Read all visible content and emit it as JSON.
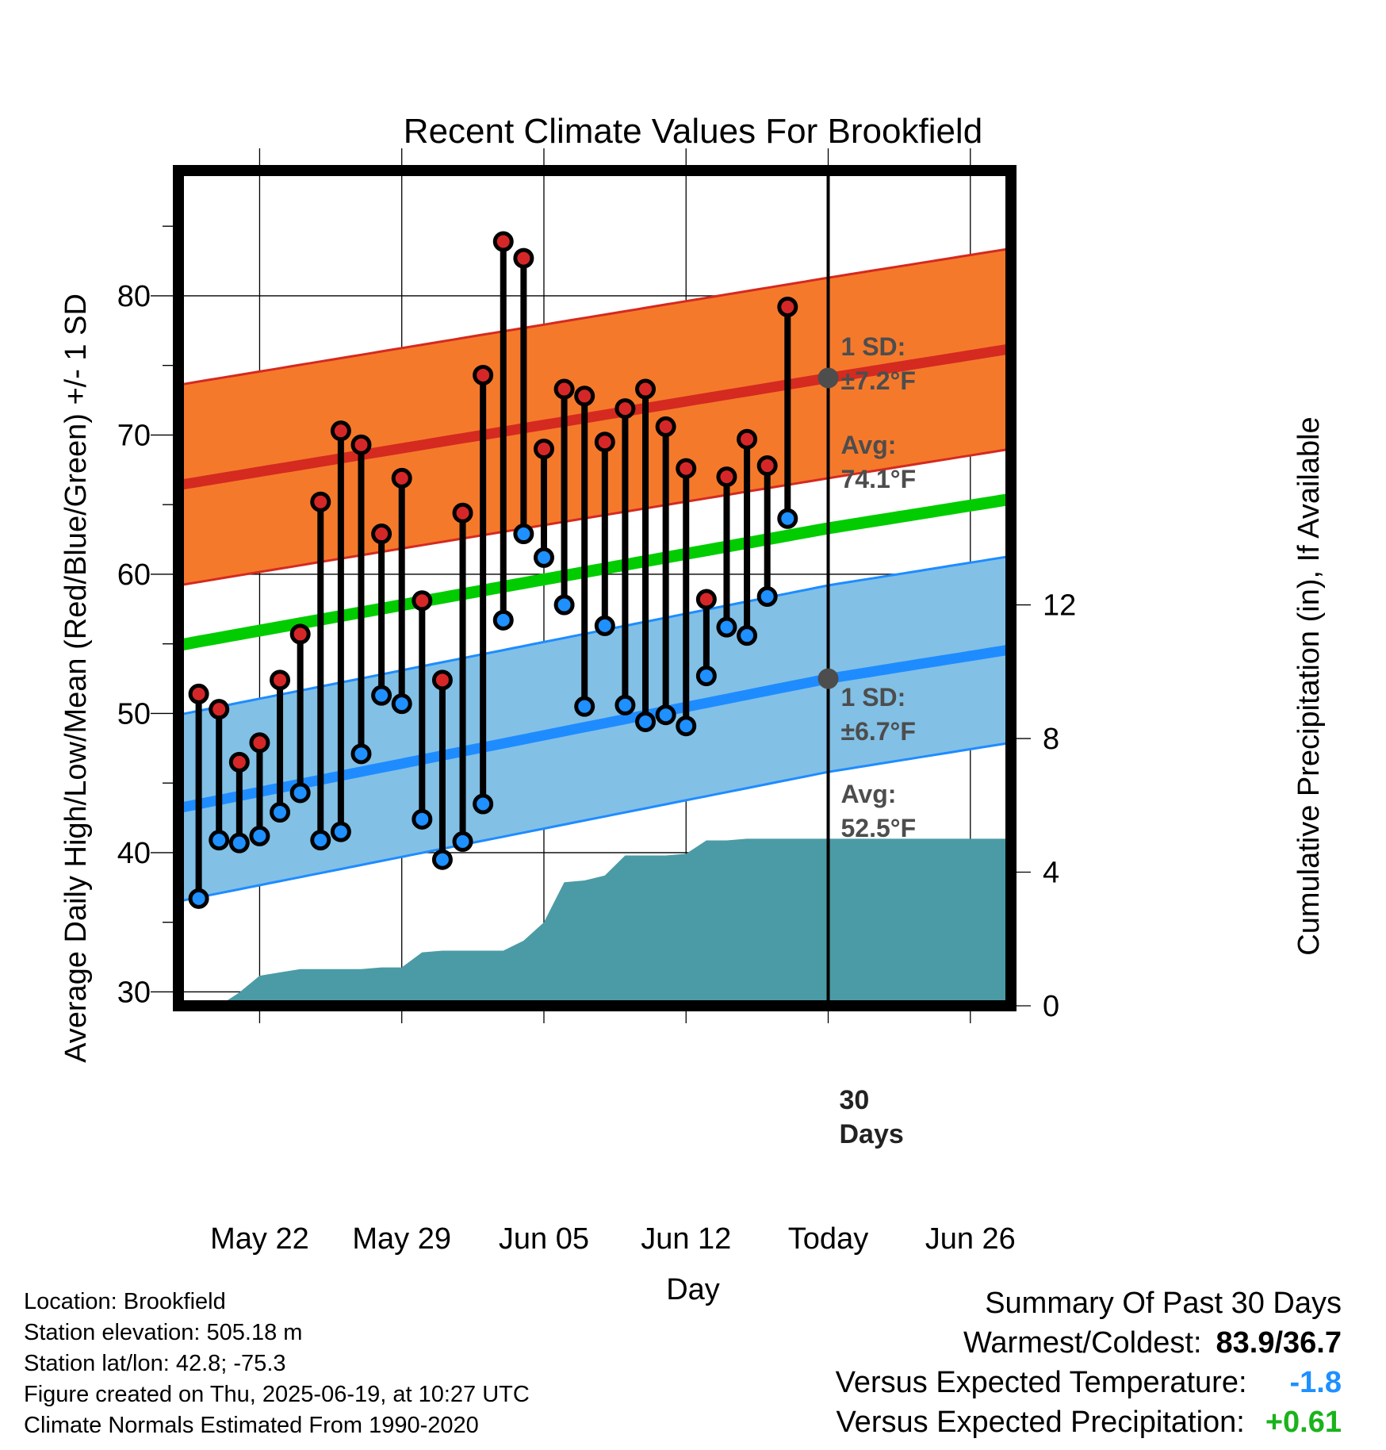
{
  "chart_data": {
    "type": "line",
    "title": "Recent Climate Values For Brookfield",
    "xlabel": "Day",
    "ylabel": "Average Daily High/Low/Mean (Red/Blue/Green) +/- 1 SD",
    "y2label": "Cumulative Precipitation (in), If Available",
    "ylim": [
      29,
      89
    ],
    "y2lim": [
      0,
      25
    ],
    "xlim": [
      "May 18",
      "Jun 28"
    ],
    "yticks": [
      30,
      40,
      50,
      60,
      70,
      80
    ],
    "y2ticks": [
      0,
      4,
      8,
      12
    ],
    "xticks": [
      {
        "date": "May 22",
        "label": "May 22"
      },
      {
        "date": "May 29",
        "label": "May 29"
      },
      {
        "date": "Jun 05",
        "label": "Jun 05"
      },
      {
        "date": "Jun 12",
        "label": "Jun 12"
      },
      {
        "date": "Jun 19",
        "label": "Today"
      },
      {
        "date": "Jun 26",
        "label": "Jun 26"
      }
    ],
    "grid": true,
    "today": "Jun 19",
    "period_label": "30 Days",
    "normals": {
      "high_avg": [
        {
          "date": "May 18",
          "value": 66.4
        },
        {
          "date": "Jun 19",
          "value": 74.1
        },
        {
          "date": "Jun 28",
          "value": 76.2
        }
      ],
      "high_sd": 7.2,
      "mean_avg": [
        {
          "date": "May 18",
          "value": 54.9
        },
        {
          "date": "Jun 19",
          "value": 63.3
        },
        {
          "date": "Jun 28",
          "value": 65.4
        }
      ],
      "low_avg": [
        {
          "date": "May 18",
          "value": 43.2
        },
        {
          "date": "Jun 19",
          "value": 52.5
        },
        {
          "date": "Jun 28",
          "value": 54.6
        }
      ],
      "low_sd": 6.7
    },
    "series": [
      {
        "name": "High",
        "color": "#d62728",
        "data": [
          {
            "date": "May 19",
            "value": 51.4
          },
          {
            "date": "May 20",
            "value": 50.3
          },
          {
            "date": "May 21",
            "value": 46.5
          },
          {
            "date": "May 22",
            "value": 47.9
          },
          {
            "date": "May 23",
            "value": 52.4
          },
          {
            "date": "May 24",
            "value": 55.7
          },
          {
            "date": "May 25",
            "value": 65.2
          },
          {
            "date": "May 26",
            "value": 70.3
          },
          {
            "date": "May 27",
            "value": 69.3
          },
          {
            "date": "May 28",
            "value": 62.9
          },
          {
            "date": "May 29",
            "value": 66.9
          },
          {
            "date": "May 30",
            "value": 58.1
          },
          {
            "date": "May 31",
            "value": 52.4
          },
          {
            "date": "Jun 01",
            "value": 64.4
          },
          {
            "date": "Jun 02",
            "value": 74.3
          },
          {
            "date": "Jun 03",
            "value": 83.9
          },
          {
            "date": "Jun 04",
            "value": 82.7
          },
          {
            "date": "Jun 05",
            "value": 69.0
          },
          {
            "date": "Jun 06",
            "value": 73.3
          },
          {
            "date": "Jun 07",
            "value": 72.8
          },
          {
            "date": "Jun 08",
            "value": 69.5
          },
          {
            "date": "Jun 09",
            "value": 71.9
          },
          {
            "date": "Jun 10",
            "value": 73.3
          },
          {
            "date": "Jun 11",
            "value": 70.6
          },
          {
            "date": "Jun 12",
            "value": 67.6
          },
          {
            "date": "Jun 13",
            "value": 58.2
          },
          {
            "date": "Jun 14",
            "value": 67.0
          },
          {
            "date": "Jun 15",
            "value": 69.7
          },
          {
            "date": "Jun 16",
            "value": 67.8
          },
          {
            "date": "Jun 17",
            "value": 79.2
          }
        ]
      },
      {
        "name": "Low",
        "color": "#1e90ff",
        "data": [
          {
            "date": "May 19",
            "value": 36.7
          },
          {
            "date": "May 20",
            "value": 40.9
          },
          {
            "date": "May 21",
            "value": 40.7
          },
          {
            "date": "May 22",
            "value": 41.2
          },
          {
            "date": "May 23",
            "value": 42.9
          },
          {
            "date": "May 24",
            "value": 44.3
          },
          {
            "date": "May 25",
            "value": 40.9
          },
          {
            "date": "May 26",
            "value": 41.5
          },
          {
            "date": "May 27",
            "value": 47.1
          },
          {
            "date": "May 28",
            "value": 51.3
          },
          {
            "date": "May 29",
            "value": 50.7
          },
          {
            "date": "May 30",
            "value": 42.4
          },
          {
            "date": "May 31",
            "value": 39.5
          },
          {
            "date": "Jun 01",
            "value": 40.8
          },
          {
            "date": "Jun 02",
            "value": 43.5
          },
          {
            "date": "Jun 03",
            "value": 56.7
          },
          {
            "date": "Jun 04",
            "value": 62.9
          },
          {
            "date": "Jun 05",
            "value": 61.2
          },
          {
            "date": "Jun 06",
            "value": 57.8
          },
          {
            "date": "Jun 07",
            "value": 50.5
          },
          {
            "date": "Jun 08",
            "value": 56.3
          },
          {
            "date": "Jun 09",
            "value": 50.6
          },
          {
            "date": "Jun 10",
            "value": 49.4
          },
          {
            "date": "Jun 11",
            "value": 49.9
          },
          {
            "date": "Jun 12",
            "value": 49.1
          },
          {
            "date": "Jun 13",
            "value": 52.7
          },
          {
            "date": "Jun 14",
            "value": 56.2
          },
          {
            "date": "Jun 15",
            "value": 55.6
          },
          {
            "date": "Jun 16",
            "value": 58.4
          },
          {
            "date": "Jun 17",
            "value": 64.0
          }
        ]
      }
    ],
    "precip": [
      {
        "date": "May 20",
        "value": 0.0
      },
      {
        "date": "May 21",
        "value": 0.4
      },
      {
        "date": "May 22",
        "value": 0.9
      },
      {
        "date": "May 23",
        "value": 1.0
      },
      {
        "date": "May 24",
        "value": 1.1
      },
      {
        "date": "May 25",
        "value": 1.1
      },
      {
        "date": "May 26",
        "value": 1.1
      },
      {
        "date": "May 27",
        "value": 1.1
      },
      {
        "date": "May 28",
        "value": 1.15
      },
      {
        "date": "May 29",
        "value": 1.15
      },
      {
        "date": "May 30",
        "value": 1.6
      },
      {
        "date": "May 31",
        "value": 1.65
      },
      {
        "date": "Jun 01",
        "value": 1.65
      },
      {
        "date": "Jun 02",
        "value": 1.65
      },
      {
        "date": "Jun 03",
        "value": 1.65
      },
      {
        "date": "Jun 04",
        "value": 1.95
      },
      {
        "date": "Jun 05",
        "value": 2.5
      },
      {
        "date": "Jun 06",
        "value": 3.7
      },
      {
        "date": "Jun 07",
        "value": 3.75
      },
      {
        "date": "Jun 08",
        "value": 3.9
      },
      {
        "date": "Jun 09",
        "value": 4.5
      },
      {
        "date": "Jun 10",
        "value": 4.5
      },
      {
        "date": "Jun 11",
        "value": 4.5
      },
      {
        "date": "Jun 12",
        "value": 4.55
      },
      {
        "date": "Jun 13",
        "value": 4.95
      },
      {
        "date": "Jun 14",
        "value": 4.95
      },
      {
        "date": "Jun 15",
        "value": 5.0
      },
      {
        "date": "Jun 16",
        "value": 5.0
      },
      {
        "date": "Jun 28",
        "value": 5.0
      }
    ],
    "annotations": {
      "high_sd_label": "1 SD:",
      "high_sd_value": "±7.2°F",
      "high_avg_label": "Avg:",
      "high_avg_value": "74.1°F",
      "low_sd_label": "1 SD:",
      "low_sd_value": "±6.7°F",
      "low_avg_label": "Avg:",
      "low_avg_value": "52.5°F",
      "days_number": "30",
      "days_word": "Days"
    }
  },
  "colors": {
    "high_band": "#f5792b",
    "high_line": "#d42a20",
    "low_band": "#82c0e6",
    "low_line": "#1e8cff",
    "mean_line": "#00cc00",
    "precip": "#4a9ba5",
    "marker_high": "#d62728",
    "marker_low": "#1e90ff",
    "avg_marker": "#4d4d4d",
    "cooler": "#1e90ff",
    "wetter": "#1ab31a"
  },
  "info": {
    "location": "Location: Brookfield",
    "elevation": "Station elevation: 505.18 m",
    "latlon": "Station lat/lon: 42.8; -75.3",
    "created": "Figure created on Thu, 2025-06-19, at 10:27 UTC",
    "normals": "Climate Normals Estimated From 1990-2020"
  },
  "summary": {
    "heading": "Summary Of Past 30 Days",
    "warm_cold_label": "Warmest/Coldest:",
    "warm_cold_value": "83.9/36.7",
    "temp_label": "Versus Expected Temperature:",
    "temp_value": "-1.8",
    "precip_label": "Versus Expected Precipitation:",
    "precip_value": "+0.61"
  }
}
